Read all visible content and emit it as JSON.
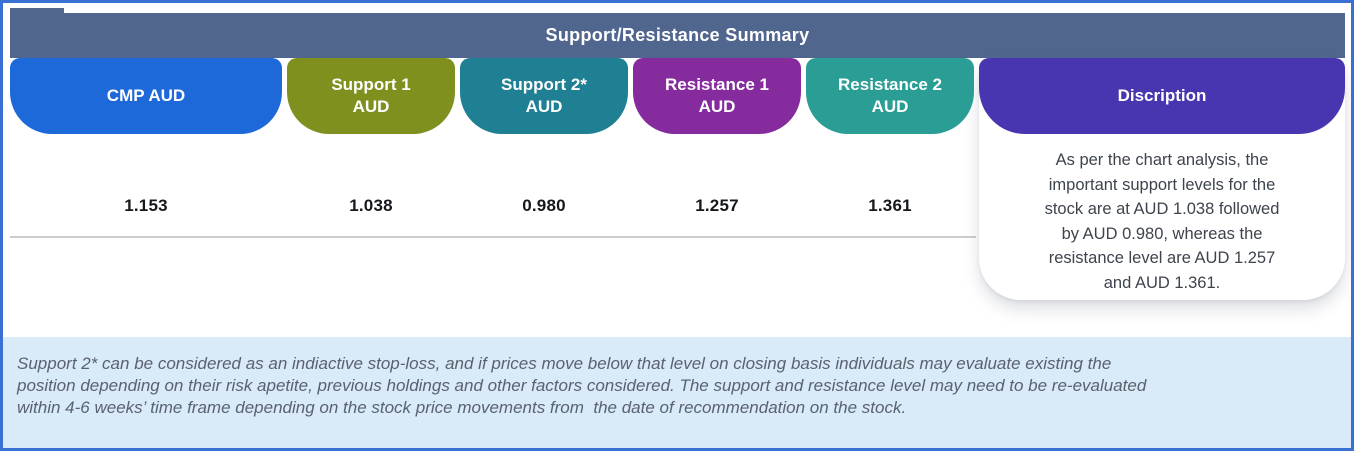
{
  "frame": {
    "border_color": "#3a70d4"
  },
  "header": {
    "title": "Support/Resistance Summary",
    "bg": "#51668f"
  },
  "table": {
    "columns": [
      {
        "id": "cmp",
        "label": "CMP AUD",
        "color": "#1e69da",
        "value": "1.153"
      },
      {
        "id": "support1",
        "label": "Support 1\nAUD",
        "color": "#7f901e",
        "value": "1.038"
      },
      {
        "id": "support2",
        "label": "Support 2*\nAUD",
        "color": "#1f7f93",
        "value": "0.980"
      },
      {
        "id": "resistance1",
        "label": "Resistance 1\nAUD",
        "color": "#862b9d",
        "value": "1.257"
      },
      {
        "id": "resistance2",
        "label": "Resistance 2\nAUD",
        "color": "#2a9e95",
        "value": "1.361"
      }
    ],
    "description": {
      "label": "Discription",
      "color": "#4736af",
      "text": "As per the chart analysis, the\nimportant support levels for the\nstock are at AUD 1.038 followed\nby AUD 0.980, whereas the\nresistance level are AUD 1.257\nand AUD 1.361."
    }
  },
  "footnote": {
    "bg": "#d9eaf8",
    "text": "Support 2* can be considered as an indiactive stop-loss, and if prices move below that level on closing basis individuals may evaluate existing the\nposition depending on their risk apetite, previous holdings and other factors considered. The support and resistance level may need to be re-evaluated\nwithin 4-6 weeks’ time frame depending on the stock price movements from  the date of recommendation on the stock."
  }
}
